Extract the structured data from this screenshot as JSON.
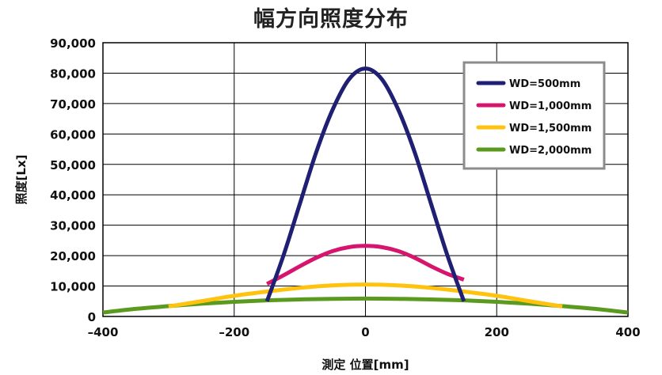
{
  "chart_data": {
    "type": "line",
    "title": "幅方向照度分布",
    "xlabel": "測定  位置[mm]",
    "ylabel": "照度[Lx]",
    "xlim": [
      -400,
      400
    ],
    "ylim": [
      0,
      90000
    ],
    "x_ticks": [
      -400,
      -200,
      0,
      200,
      400
    ],
    "x_tick_labels": [
      "–400",
      "–200",
      "0",
      "200",
      "400"
    ],
    "y_ticks": [
      0,
      10000,
      20000,
      30000,
      40000,
      50000,
      60000,
      70000,
      80000,
      90000
    ],
    "y_tick_labels": [
      "0",
      "10,000",
      "20,000",
      "30,000",
      "40,000",
      "50,000",
      "60,000",
      "70,000",
      "80,000",
      "90,000"
    ],
    "grid": true,
    "legend_position": "top-right",
    "series": [
      {
        "name": "WD=500mm",
        "color": "#1f1f73",
        "x": [
          -150,
          -125,
          -100,
          -75,
          -50,
          -25,
          0,
          25,
          50,
          75,
          100,
          125,
          150
        ],
        "y": [
          5000,
          20000,
          37000,
          54000,
          68000,
          78000,
          81500,
          78000,
          68000,
          54000,
          37000,
          20000,
          5000
        ]
      },
      {
        "name": "WD=1,000mm",
        "color": "#d6166e",
        "x": [
          -150,
          -125,
          -100,
          -75,
          -50,
          -25,
          0,
          25,
          50,
          75,
          100,
          125,
          150
        ],
        "y": [
          10700,
          13500,
          16500,
          19300,
          21500,
          22800,
          23200,
          22800,
          21500,
          19300,
          16500,
          14000,
          12100
        ]
      },
      {
        "name": "WD=1,500mm",
        "color": "#ffc20e",
        "x": [
          -300,
          -250,
          -200,
          -150,
          -100,
          -50,
          0,
          50,
          100,
          150,
          200,
          250,
          300
        ],
        "y": [
          3300,
          5000,
          6800,
          8200,
          9400,
          10200,
          10500,
          10200,
          9400,
          8200,
          6800,
          5000,
          3300
        ]
      },
      {
        "name": "WD=2,000mm",
        "color": "#5a9a1e",
        "x": [
          -400,
          -350,
          -300,
          -250,
          -200,
          -150,
          -100,
          -50,
          0,
          50,
          100,
          150,
          200,
          250,
          300,
          350,
          400
        ],
        "y": [
          1300,
          2500,
          3400,
          4200,
          4800,
          5300,
          5600,
          5800,
          5900,
          5800,
          5600,
          5300,
          4800,
          4200,
          3400,
          2500,
          1300
        ]
      }
    ]
  }
}
